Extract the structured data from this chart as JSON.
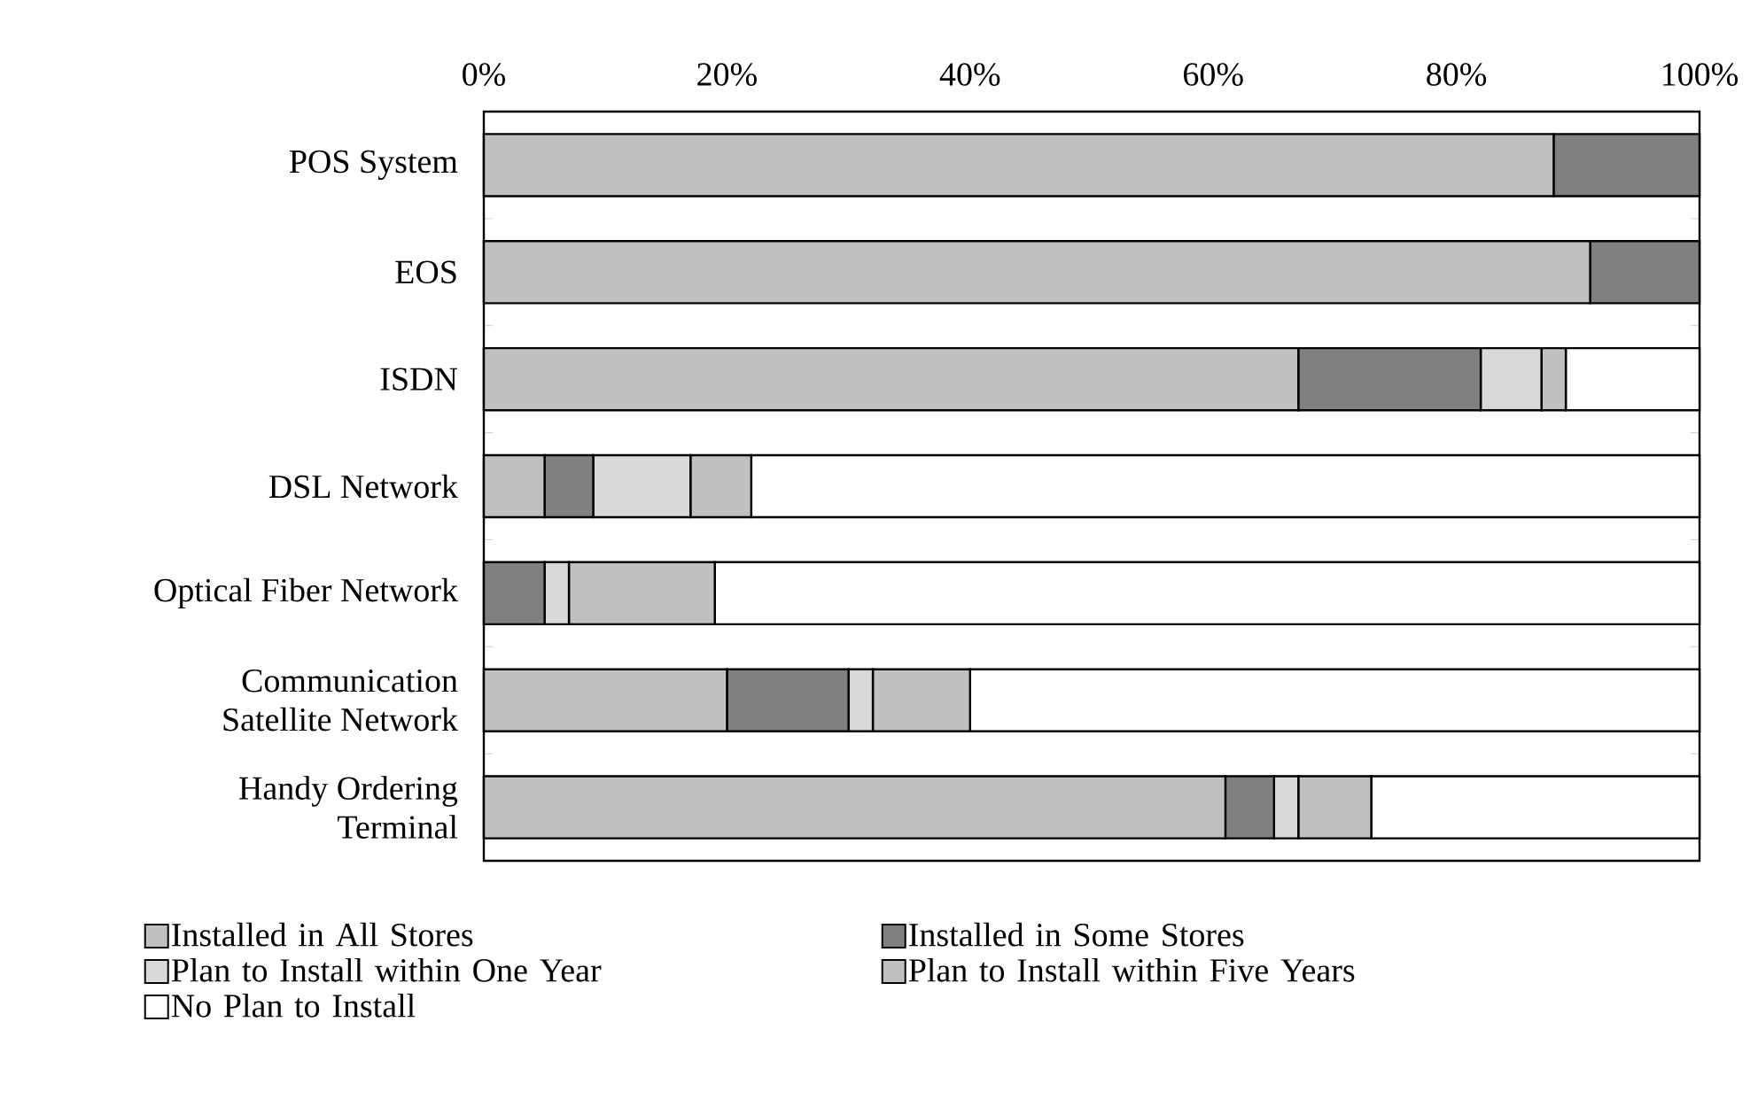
{
  "chart_data": {
    "type": "bar",
    "orientation": "horizontal",
    "stacked": true,
    "legend": "bottom",
    "grid": false,
    "categories": [
      "POS System",
      "EOS",
      "ISDN",
      "DSL Network",
      "Optical Fiber Network",
      "Communication Satellite Network",
      "Handy Ordering Terminal"
    ],
    "xlim": [
      0,
      100
    ],
    "xticks": [
      {
        "value": 0,
        "label": "0%"
      },
      {
        "value": 20,
        "label": "20%"
      },
      {
        "value": 40,
        "label": "40%"
      },
      {
        "value": 60,
        "label": "60%"
      },
      {
        "value": 80,
        "label": "80%"
      },
      {
        "value": 100,
        "label": "100%"
      }
    ],
    "series": [
      {
        "name": "Installed in All Stores",
        "color": "#c0c0c0",
        "values": [
          88,
          91,
          67,
          5,
          0,
          20,
          61
        ]
      },
      {
        "name": "Installed in Some Stores",
        "color": "#808080",
        "values": [
          12,
          9,
          15,
          4,
          5,
          10,
          4
        ]
      },
      {
        "name": "Plan to Install within One Year",
        "color": "#d9d9d9",
        "values": [
          0,
          0,
          5,
          8,
          2,
          2,
          2
        ]
      },
      {
        "name": "Plan to Install within Five Years",
        "color": "#c0c0c0",
        "values": [
          0,
          0,
          2,
          5,
          12,
          8,
          6
        ]
      },
      {
        "name": "No Plan to Install",
        "color": "#ffffff",
        "values": [
          0,
          0,
          11,
          78,
          81,
          60,
          27
        ]
      }
    ]
  }
}
